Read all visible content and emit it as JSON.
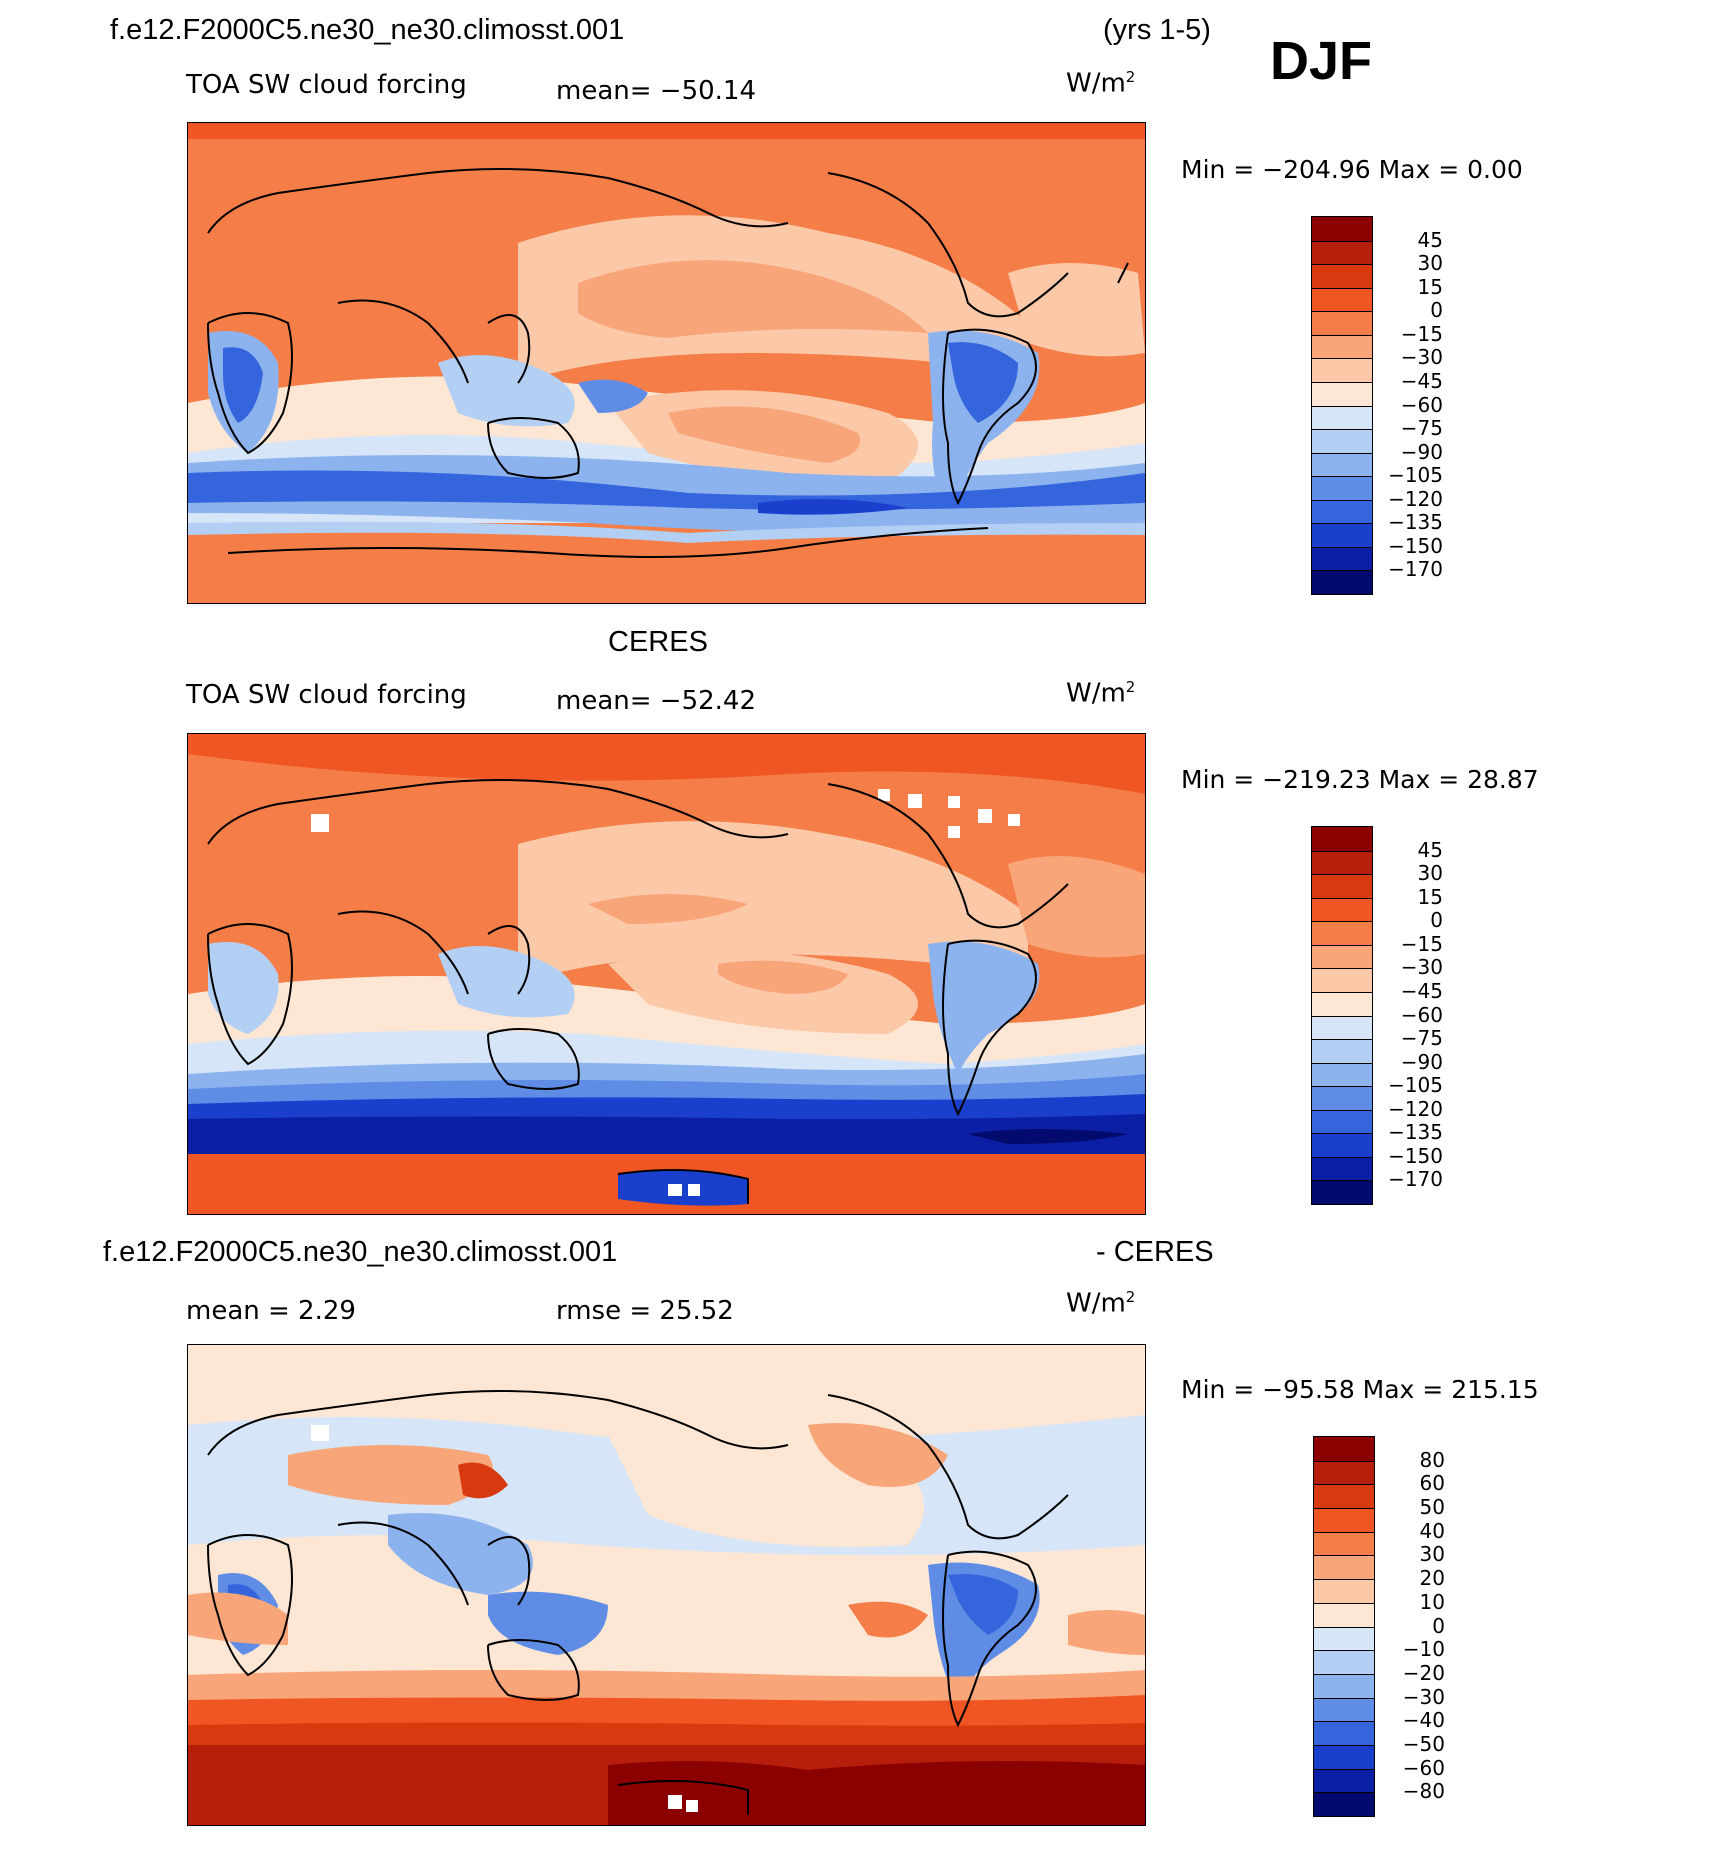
{
  "header": {
    "case_name": "f.e12.F2000C5.ne30_ne30.climosst.001",
    "years": "(yrs 1-5)",
    "season": "DJF"
  },
  "panels": [
    {
      "id": "model",
      "title": "",
      "variable": "TOA SW cloud forcing",
      "stat1": "mean=  −50.14",
      "units": "W/m",
      "units_sup": "2",
      "minmax": "Min  =  −204.96  Max  =     0.00",
      "colorbar": {
        "labels": [
          "45",
          "30",
          "15",
          "0",
          "−15",
          "−30",
          "−45",
          "−60",
          "−75",
          "−90",
          "−105",
          "−120",
          "−135",
          "−150",
          "−170"
        ],
        "colors": [
          "#8b0000",
          "#b81e0c",
          "#d9390f",
          "#f05623",
          "#f57d47",
          "#f9a57a",
          "#fbc8a8",
          "#fde7d4",
          "#d6e6f8",
          "#b3cff4",
          "#8db3ef",
          "#5f8de6",
          "#3565dc",
          "#1a3fcc",
          "#0a1fa3",
          "#030a6e"
        ]
      }
    },
    {
      "id": "obs",
      "title": "CERES",
      "variable": "TOA SW cloud forcing",
      "stat1": "mean=  −52.42",
      "units": "W/m",
      "units_sup": "2",
      "minmax": "Min  =  −219.23  Max  =   28.87",
      "colorbar": {
        "labels": [
          "45",
          "30",
          "15",
          "0",
          "−15",
          "−30",
          "−45",
          "−60",
          "−75",
          "−90",
          "−105",
          "−120",
          "−135",
          "−150",
          "−170"
        ],
        "colors": [
          "#8b0000",
          "#b81e0c",
          "#d9390f",
          "#f05623",
          "#f57d47",
          "#f9a57a",
          "#fbc8a8",
          "#fde7d4",
          "#d6e6f8",
          "#b3cff4",
          "#8db3ef",
          "#5f8de6",
          "#3565dc",
          "#1a3fcc",
          "#0a1fa3",
          "#030a6e"
        ]
      }
    },
    {
      "id": "diff",
      "title_left": "f.e12.F2000C5.ne30_ne30.climosst.001",
      "title_right": "- CERES",
      "stat1": "mean  =     2.29",
      "stat2": "rmse  =    25.52",
      "units": "W/m",
      "units_sup": "2",
      "minmax": "Min  =  −95.58  Max  =  215.15",
      "colorbar": {
        "labels": [
          "80",
          "60",
          "50",
          "40",
          "30",
          "20",
          "10",
          "0",
          "−10",
          "−20",
          "−30",
          "−40",
          "−50",
          "−60",
          "−80"
        ],
        "colors": [
          "#8b0000",
          "#b81e0c",
          "#d9390f",
          "#f05623",
          "#f57d47",
          "#f9a57a",
          "#fbc8a8",
          "#fde7d4",
          "#d6e6f8",
          "#b3cff4",
          "#8db3ef",
          "#5f8de6",
          "#3565dc",
          "#1a3fcc",
          "#0a1fa3",
          "#030a6e"
        ]
      }
    }
  ]
}
